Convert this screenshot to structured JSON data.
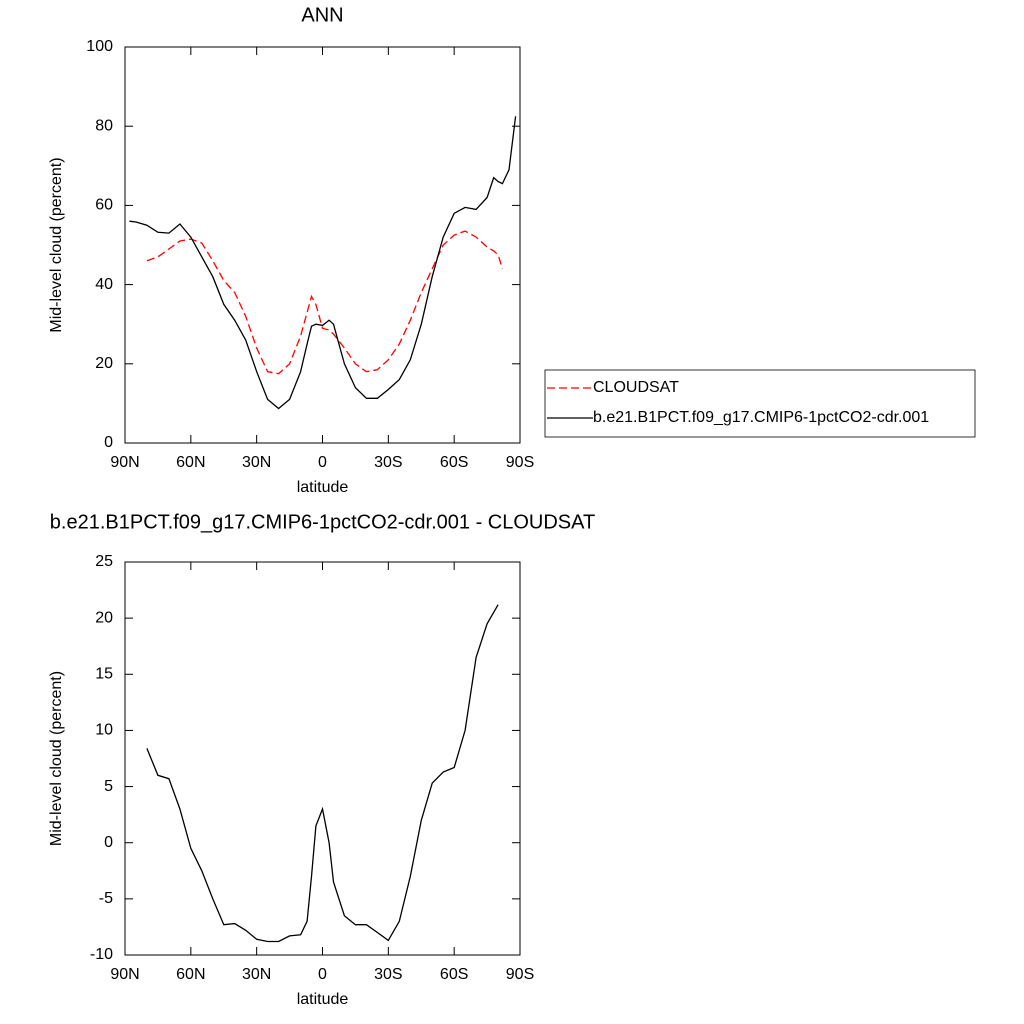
{
  "chart_data": [
    {
      "type": "line",
      "title": "ANN",
      "x_label": "latitude",
      "y_label": "Mid-level cloud (percent)",
      "x": [
        88,
        85,
        80,
        75,
        70,
        65,
        60,
        55,
        50,
        45,
        40,
        35,
        30,
        25,
        20,
        15,
        10,
        7,
        5,
        3,
        0,
        -3,
        -5,
        -10,
        -15,
        -20,
        -25,
        -30,
        -35,
        -40,
        -45,
        -50,
        -55,
        -60,
        -65,
        -70,
        -75,
        -78,
        -80,
        -82,
        -85,
        -88
      ],
      "series": [
        {
          "name": "CLOUDSAT",
          "color": "#ff0000",
          "dash": true,
          "values": [
            null,
            null,
            46,
            47,
            49,
            51,
            51.5,
            50.5,
            46,
            41,
            38,
            32,
            24,
            18,
            17.5,
            20,
            27,
            33,
            37,
            35,
            29,
            28.5,
            27.5,
            24,
            20,
            18,
            18.5,
            21,
            25,
            31,
            38,
            44,
            50,
            52.5,
            53.5,
            52,
            49.5,
            48.5,
            47.5,
            44,
            null,
            null
          ]
        },
        {
          "name": "b.e21.B1PCT.f09_g17.CMIP6-1pctCO2-cdr.001",
          "color": "#000000",
          "dash": false,
          "values": [
            56,
            55.8,
            55,
            53.2,
            53,
            55.3,
            52,
            47,
            42,
            35,
            31,
            26,
            18,
            11,
            8.7,
            11,
            18,
            25,
            29.5,
            30,
            29.7,
            31,
            30,
            20,
            14,
            11.3,
            11.3,
            13.5,
            16,
            21,
            30,
            42,
            52,
            58,
            59.5,
            59,
            62,
            67,
            66,
            65.5,
            69,
            82.5
          ]
        }
      ],
      "xlim": [
        90,
        -90
      ],
      "xticks": [
        {
          "value": 90,
          "label": "90N"
        },
        {
          "value": 60,
          "label": "60N"
        },
        {
          "value": 30,
          "label": "30N"
        },
        0,
        {
          "value": -30,
          "label": "30S"
        },
        {
          "value": -60,
          "label": "60S"
        },
        {
          "value": -90,
          "label": "90S"
        }
      ],
      "ylim": [
        0,
        100
      ],
      "yticks": [
        0,
        20,
        40,
        60,
        80,
        100
      ],
      "legend": "right"
    },
    {
      "type": "line",
      "title": "b.e21.B1PCT.f09_g17.CMIP6-1pctCO2-cdr.001 - CLOUDSAT",
      "x_label": "latitude",
      "y_label": "Mid-level cloud (percent)",
      "x": [
        80,
        75,
        70,
        65,
        60,
        55,
        50,
        45,
        40,
        35,
        30,
        25,
        20,
        15,
        10,
        7,
        5,
        3,
        0,
        -3,
        -5,
        -10,
        -15,
        -20,
        -25,
        -30,
        -35,
        -40,
        -45,
        -50,
        -55,
        -60,
        -65,
        -70,
        -75,
        -80
      ],
      "series": [
        {
          "color": "#000000",
          "dash": false,
          "values": [
            8.4,
            6,
            5.7,
            3,
            -0.5,
            -2.5,
            -5,
            -7.3,
            -7.2,
            -7.8,
            -8.6,
            -8.8,
            -8.8,
            -8.3,
            -8.2,
            -7,
            -3,
            1.5,
            3,
            0,
            -3.5,
            -6.5,
            -7.3,
            -7.3,
            -8,
            -8.7,
            -7,
            -3,
            2,
            5.3,
            6.3,
            6.7,
            10,
            16.5,
            19.5,
            21.2
          ]
        }
      ],
      "xlim": [
        90,
        -90
      ],
      "xticks": [
        {
          "value": 90,
          "label": "90N"
        },
        {
          "value": 60,
          "label": "60N"
        },
        {
          "value": 30,
          "label": "30N"
        },
        0,
        {
          "value": -30,
          "label": "30S"
        },
        {
          "value": -60,
          "label": "60S"
        },
        {
          "value": -90,
          "label": "90S"
        }
      ],
      "ylim": [
        -10,
        25
      ],
      "yticks": [
        -10,
        -5,
        0,
        5,
        10,
        15,
        20,
        25
      ]
    }
  ]
}
